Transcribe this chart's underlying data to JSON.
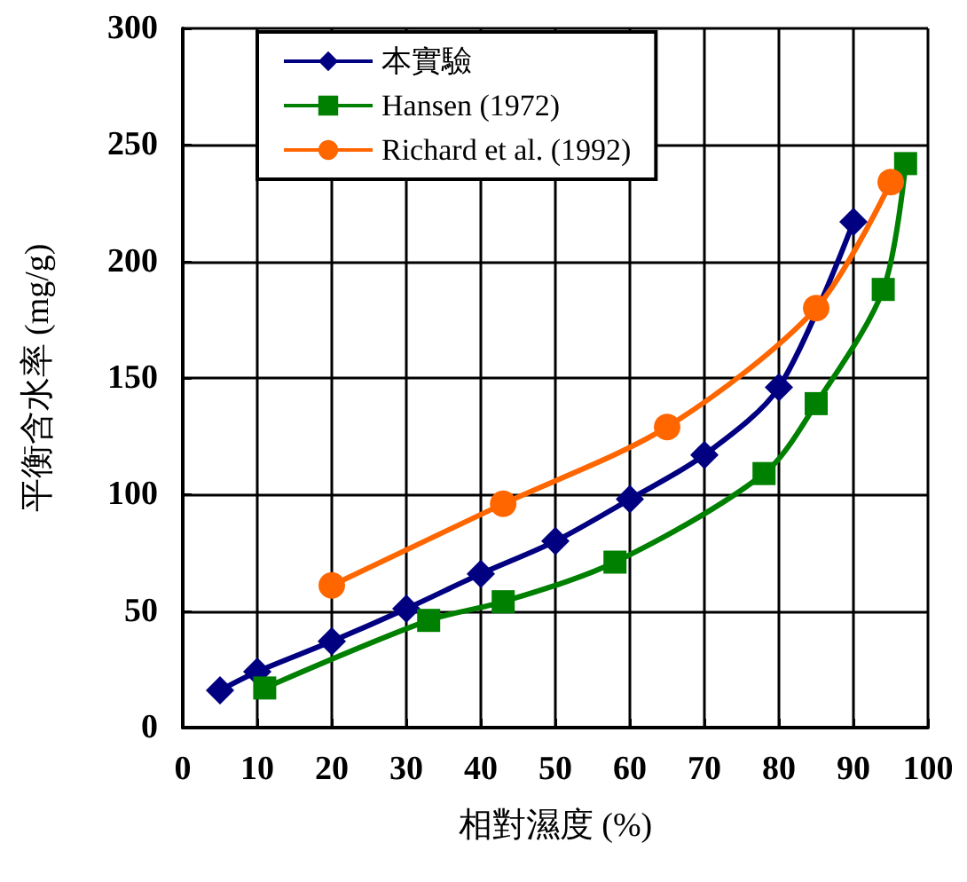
{
  "chart_data": {
    "type": "line",
    "xlabel": "相對濕度 (%)",
    "ylabel": "平衡含水率 (mg/g)",
    "xlim": [
      0,
      100
    ],
    "xticks": [
      0,
      10,
      20,
      30,
      40,
      50,
      60,
      70,
      80,
      90,
      100
    ],
    "ylim": [
      0,
      300
    ],
    "yticks": [
      0,
      50,
      100,
      150,
      200,
      250,
      300
    ],
    "grid": true,
    "legend": "top left",
    "line_style": "solid",
    "series": [
      {
        "name": "本實驗",
        "color": "#000080",
        "marker": "diamond",
        "x": [
          5,
          10,
          20,
          30,
          40,
          50,
          60,
          70,
          80,
          90
        ],
        "values": [
          16,
          24,
          37,
          51,
          66,
          80,
          98,
          117,
          146,
          217
        ]
      },
      {
        "name": "Hansen (1972)",
        "color": "#008000",
        "marker": "square",
        "x": [
          11,
          33,
          43,
          58,
          78,
          85,
          94,
          97
        ],
        "values": [
          17,
          46,
          54,
          71,
          109,
          139,
          188,
          242
        ]
      },
      {
        "name": "Richard et al. (1992)",
        "color": "#ff6600",
        "marker": "circle",
        "x": [
          20,
          43,
          65,
          85,
          95
        ],
        "values": [
          61,
          96,
          129,
          180,
          234
        ]
      }
    ]
  }
}
